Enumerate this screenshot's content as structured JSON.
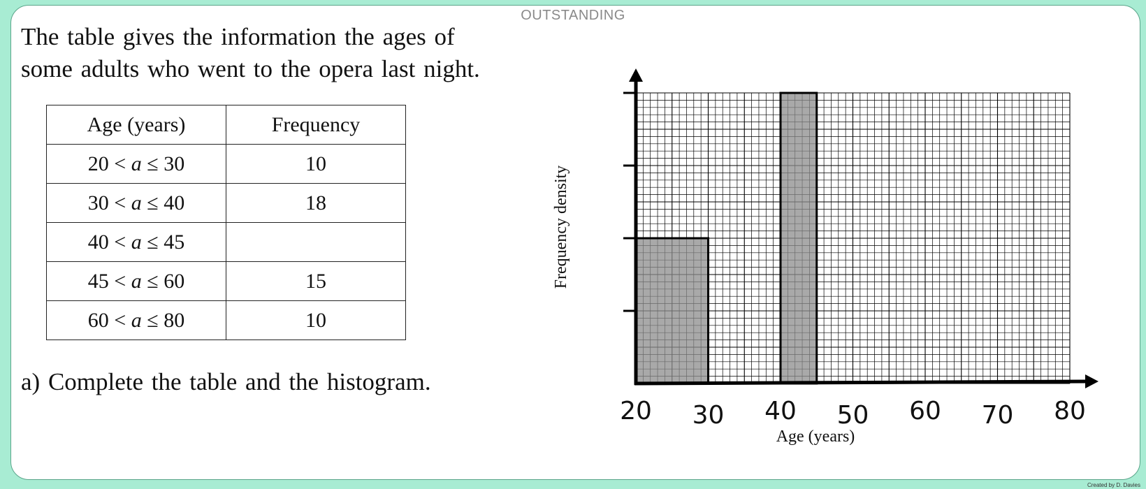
{
  "banner": "OUTSTANDING",
  "intro": "The table gives the information the ages of some adults who went to the opera last night.",
  "table": {
    "headers": [
      "Age (years)",
      "Frequency"
    ],
    "rows": [
      {
        "lower": "20",
        "upper": "30",
        "var": "a",
        "frequency": "10"
      },
      {
        "lower": "30",
        "upper": "40",
        "var": "a",
        "frequency": "18"
      },
      {
        "lower": "40",
        "upper": "45",
        "var": "a",
        "frequency": ""
      },
      {
        "lower": "45",
        "upper": "60",
        "var": "a",
        "frequency": "15"
      },
      {
        "lower": "60",
        "upper": "80",
        "var": "a",
        "frequency": "10"
      }
    ]
  },
  "task": "a) Complete the table and the histogram.",
  "credit": "Created by D. Davies",
  "chart_data": {
    "type": "bar",
    "title": "",
    "xlabel": "Age (years)",
    "ylabel": "Frequency density",
    "xlim": [
      20,
      80
    ],
    "ylim": [
      0,
      4
    ],
    "x_ticks": [
      "20",
      "30",
      "40",
      "50",
      "60",
      "70",
      "80"
    ],
    "y_ticks_count": 4,
    "y_tick_labels": [],
    "grid": true,
    "bars": [
      {
        "x0": 20,
        "x1": 30,
        "height": 2
      },
      {
        "x0": 40,
        "x1": 45,
        "height": 4
      }
    ],
    "colors": {
      "bar_fill": "#8c8c8c",
      "grid": "#000000",
      "axis": "#000000"
    }
  }
}
